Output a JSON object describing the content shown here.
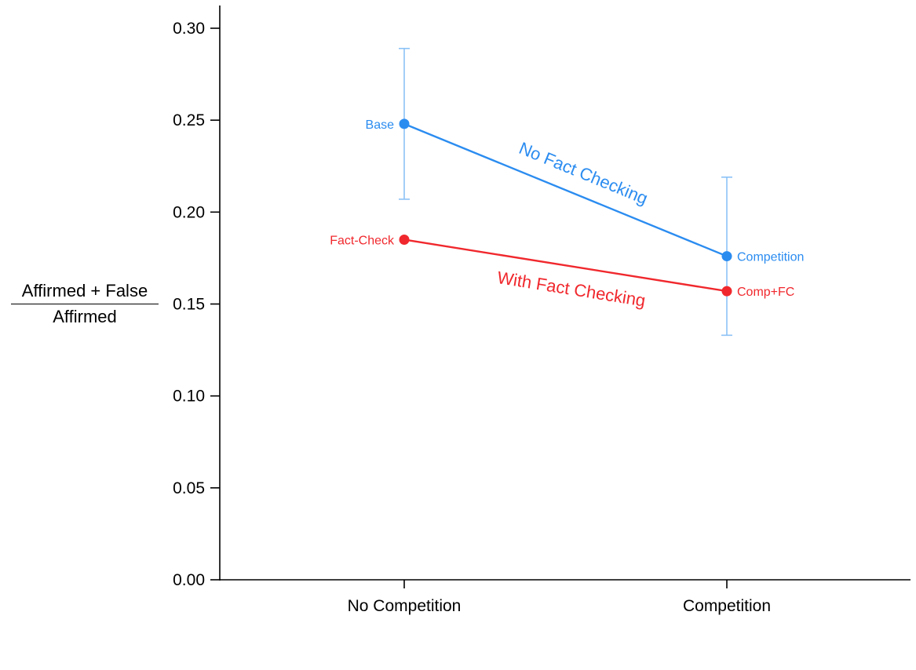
{
  "chart_data": {
    "type": "line",
    "categories": [
      "No Competition",
      "Competition"
    ],
    "ylabel": {
      "numerator": "Affirmed + False",
      "denominator": "Affirmed"
    },
    "ylim": [
      0,
      0.3
    ],
    "yticks": [
      0.0,
      0.05,
      0.1,
      0.15,
      0.2,
      0.25,
      0.3
    ],
    "ytick_labels": [
      "0.00",
      "0.05",
      "0.10",
      "0.15",
      "0.20",
      "0.25",
      "0.30"
    ],
    "grid": false,
    "series": [
      {
        "name": "No Fact Checking",
        "color": "#2b8cf0",
        "errorbar_color": "#8cc2f6",
        "values": [
          0.248,
          0.176
        ],
        "point_labels": [
          "Base",
          "Competition"
        ],
        "ci": [
          [
            0.207,
            0.289
          ],
          [
            0.133,
            0.219
          ]
        ]
      },
      {
        "name": "With Fact Checking",
        "color": "#f0282d",
        "values": [
          0.185,
          0.157
        ],
        "point_labels": [
          "Fact-Check",
          "Comp+FC"
        ]
      }
    ]
  }
}
